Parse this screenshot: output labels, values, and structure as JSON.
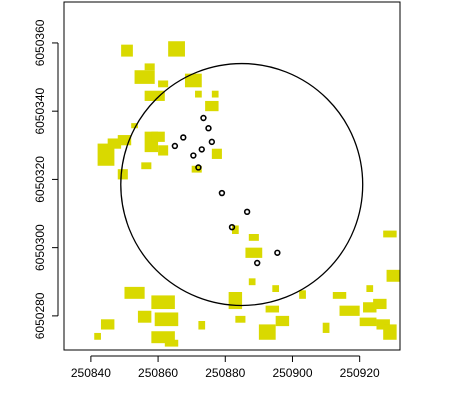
{
  "chart_data": {
    "type": "scatter",
    "title": "",
    "xlabel": "",
    "ylabel": "",
    "xlim": [
      250832,
      250932
    ],
    "ylim": [
      6050270,
      6050372
    ],
    "grid": false,
    "x_ticks": [
      {
        "value": 250840,
        "label": "250840"
      },
      {
        "value": 250860,
        "label": "250860"
      },
      {
        "value": 250880,
        "label": "250880"
      },
      {
        "value": 250900,
        "label": "250900"
      },
      {
        "value": 250920,
        "label": "250920"
      }
    ],
    "y_ticks": [
      {
        "value": 6050280,
        "label": "6050280"
      },
      {
        "value": 6050300,
        "label": "6050300"
      },
      {
        "value": 6050320,
        "label": "6050320"
      },
      {
        "value": 6050340,
        "label": "6050340"
      },
      {
        "value": 6050360,
        "label": "6050360"
      }
    ],
    "points": [
      {
        "x": 250873.5,
        "y": 6050338.0
      },
      {
        "x": 250875.0,
        "y": 6050335.0
      },
      {
        "x": 250867.5,
        "y": 6050332.3
      },
      {
        "x": 250876.0,
        "y": 6050331.0
      },
      {
        "x": 250865.0,
        "y": 6050329.8
      },
      {
        "x": 250873.0,
        "y": 6050328.8
      },
      {
        "x": 250870.5,
        "y": 6050327.0
      },
      {
        "x": 250872.0,
        "y": 6050323.5
      },
      {
        "x": 250879.0,
        "y": 6050316.0
      },
      {
        "x": 250886.5,
        "y": 6050310.5
      },
      {
        "x": 250882.0,
        "y": 6050306.0
      },
      {
        "x": 250895.5,
        "y": 6050298.5
      },
      {
        "x": 250889.5,
        "y": 6050295.5
      }
    ],
    "circle": {
      "cx": 250884.9,
      "cy": 6050318.5,
      "r": 36.0
    },
    "patches": [
      [
        250849,
        6050356,
        3.5,
        3.5
      ],
      [
        250853,
        6050348,
        6,
        4
      ],
      [
        250856,
        6050343,
        6,
        3
      ],
      [
        250860,
        6050347,
        3,
        2
      ],
      [
        250863,
        6050356,
        5,
        4.5
      ],
      [
        250868,
        6050347,
        5,
        4
      ],
      [
        250871,
        6050344,
        2,
        2
      ],
      [
        250874,
        6050340,
        4,
        3
      ],
      [
        250852,
        6050335,
        2,
        1.5
      ],
      [
        250842,
        6050324,
        5,
        6.5
      ],
      [
        250845,
        6050329,
        4,
        3
      ],
      [
        250848,
        6050330,
        4,
        3
      ],
      [
        250848,
        6050320,
        3,
        3
      ],
      [
        250856,
        6050328,
        4,
        6
      ],
      [
        250860,
        6050327,
        3,
        3
      ],
      [
        250858,
        6050331,
        4,
        3
      ],
      [
        250870,
        6050322,
        3,
        2
      ],
      [
        250876,
        6050326,
        3,
        3
      ],
      [
        250882,
        6050304,
        2,
        2.5
      ],
      [
        250887,
        6050302,
        3,
        2
      ],
      [
        250886,
        6050297,
        5,
        3
      ],
      [
        250881,
        6050282,
        4,
        5
      ],
      [
        250883,
        6050278,
        3,
        2
      ],
      [
        250892,
        6050281,
        4,
        2
      ],
      [
        250902,
        6050285,
        2,
        2.5
      ],
      [
        250894,
        6050287,
        2,
        2
      ],
      [
        250890,
        6050273,
        5,
        4.5
      ],
      [
        250895,
        6050277,
        4,
        3
      ],
      [
        250850,
        6050285,
        6,
        3.5
      ],
      [
        250858,
        6050282,
        7,
        4
      ],
      [
        250854,
        6050278,
        4,
        3.5
      ],
      [
        250859,
        6050277,
        7,
        4
      ],
      [
        250858,
        6050272,
        7,
        3.5
      ],
      [
        250862,
        6050271,
        4,
        2
      ],
      [
        250843,
        6050276,
        4,
        3
      ],
      [
        250841,
        6050273,
        2,
        2
      ],
      [
        250872,
        6050276,
        2,
        2.5
      ],
      [
        250912,
        6050285,
        4,
        2
      ],
      [
        250914,
        6050280,
        6,
        3
      ],
      [
        250921,
        6050281,
        4,
        3
      ],
      [
        250924,
        6050282,
        4,
        3
      ],
      [
        250920,
        6050277,
        5,
        2.5
      ],
      [
        250925,
        6050276,
        4,
        3
      ],
      [
        250927,
        6050273,
        4,
        4.5
      ],
      [
        250928,
        6050290,
        4,
        3.5
      ],
      [
        250927,
        6050303,
        4,
        2
      ],
      [
        250909,
        6050275,
        2,
        3
      ],
      [
        250887,
        6050289,
        2,
        2
      ],
      [
        250922,
        6050287,
        2,
        2
      ],
      [
        250855,
        6050323,
        3,
        2
      ],
      [
        250876,
        6050344,
        2,
        2
      ],
      [
        250856,
        6050352,
        3,
        2
      ]
    ],
    "colors": {
      "patch": "#d9d900",
      "frame": "#000000",
      "point": "#000000"
    }
  }
}
